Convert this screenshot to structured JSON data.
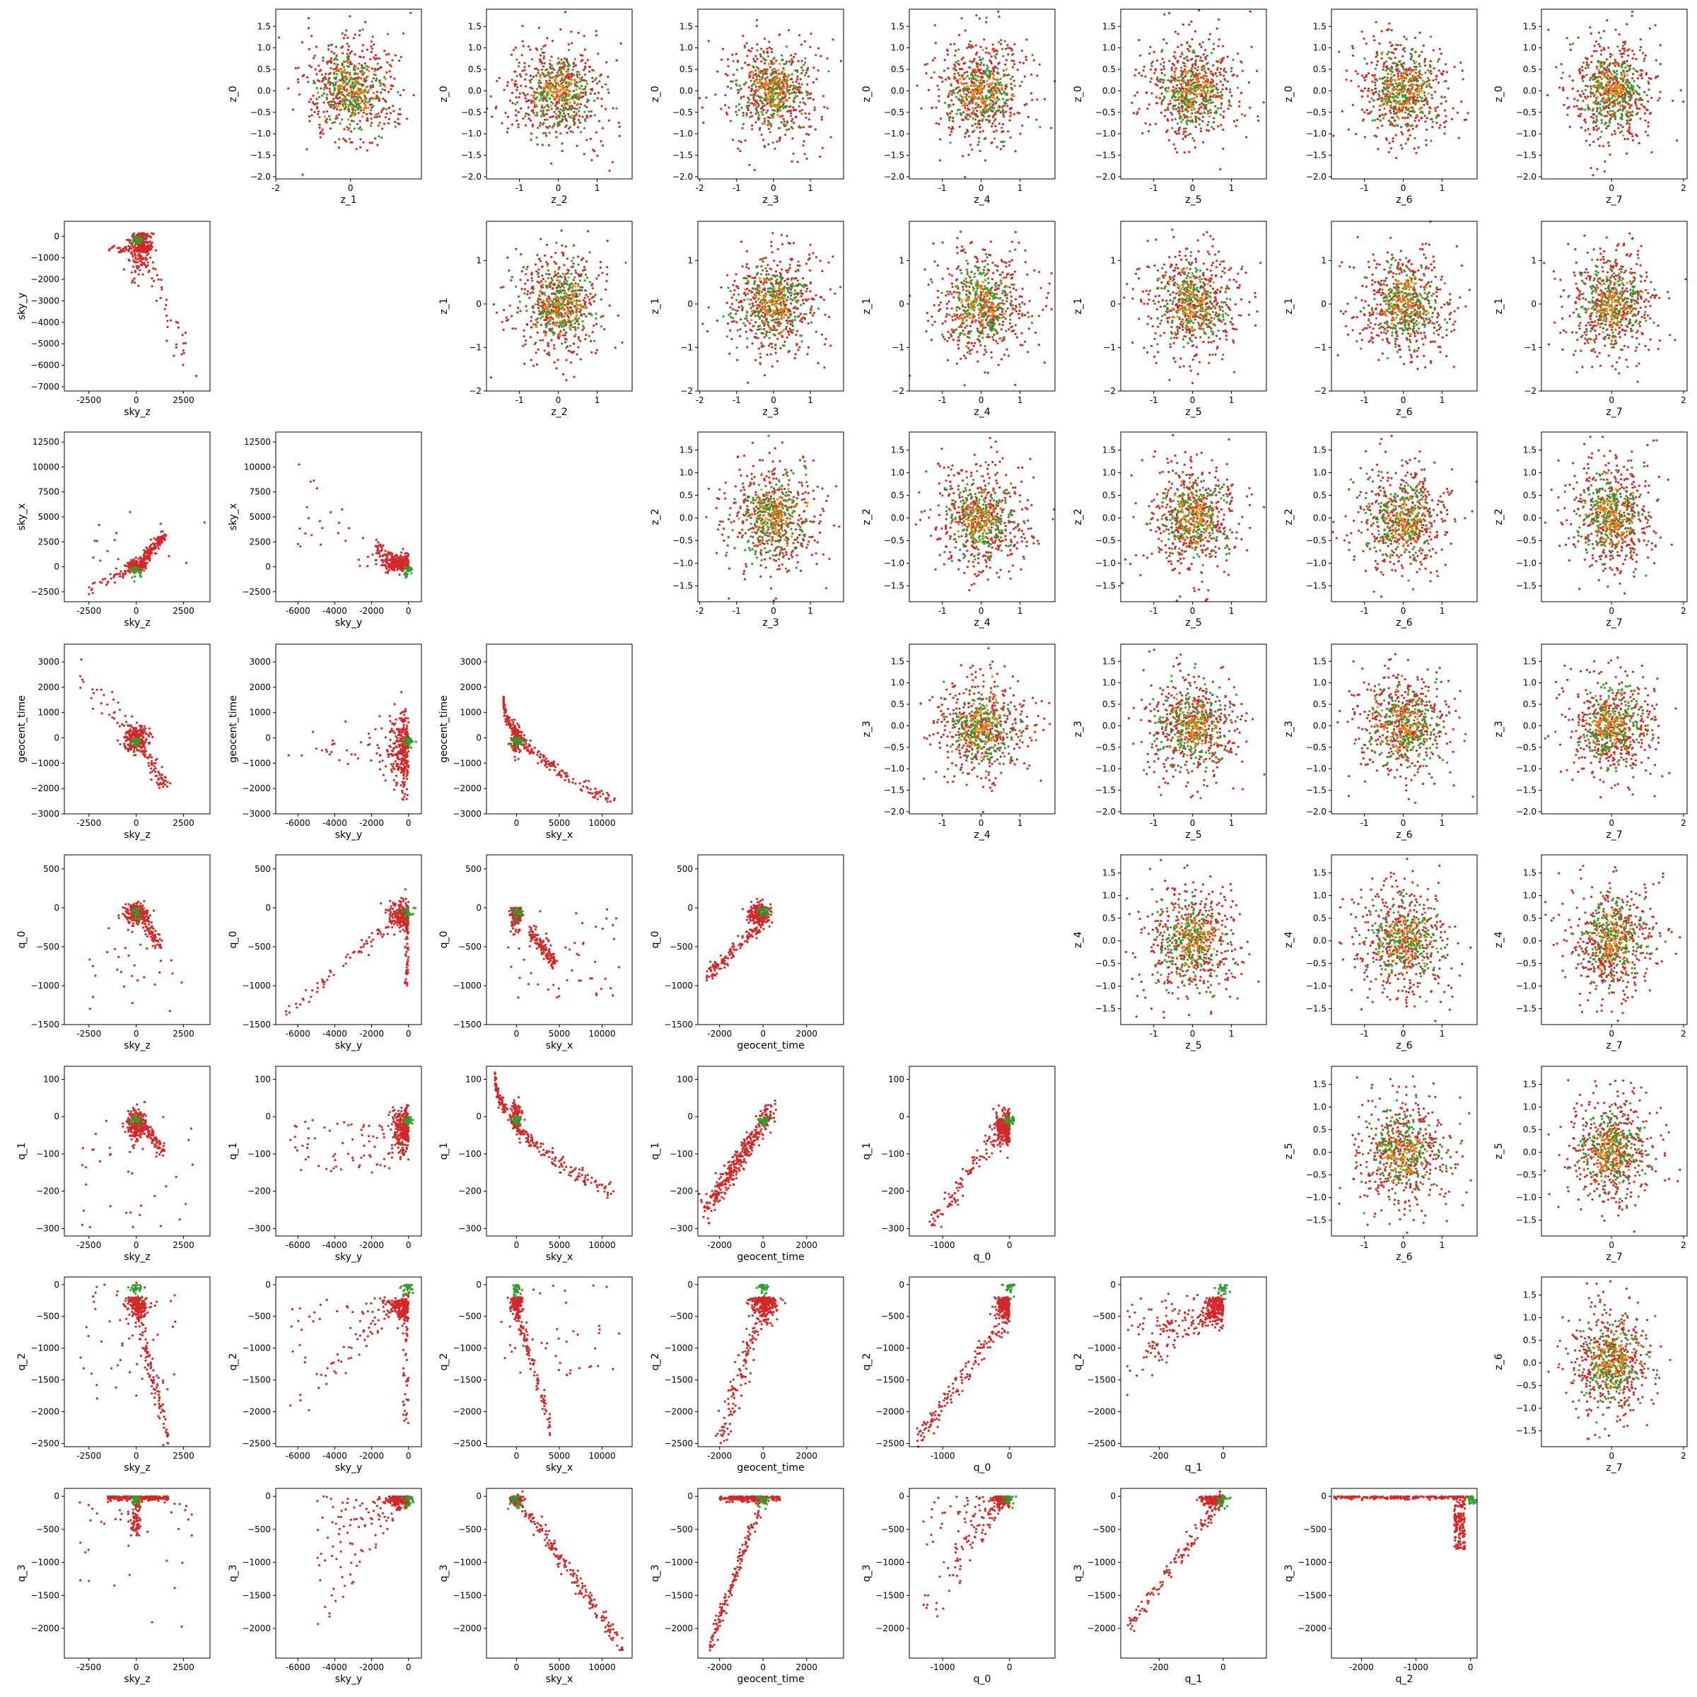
{
  "figure": {
    "type": "pair-plot",
    "colors": {
      "series_a": "#d62728",
      "series_b": "#2ca02c",
      "overlap": "#ff7f0e"
    }
  },
  "chart_data": {
    "type": "scatter",
    "layout": "lower-triangle: raw parameters; upper-triangle: latent z samples",
    "variables_lower": [
      "sky_z",
      "sky_y",
      "sky_x",
      "geocent_time",
      "q_0",
      "q_1",
      "q_2",
      "q_3"
    ],
    "variables_upper": [
      "z_0",
      "z_1",
      "z_2",
      "z_3",
      "z_4",
      "z_5",
      "z_6",
      "z_7"
    ],
    "ticks": {
      "sky_z": [
        -2500,
        0,
        2500
      ],
      "sky_y": [
        -6000,
        -4000,
        -2000,
        0
      ],
      "sky_x": [
        0,
        5000,
        10000
      ],
      "geocent_time": [
        -2000,
        0,
        2000
      ],
      "q_0": [
        -1000,
        0
      ],
      "q_1": [
        -200,
        0
      ],
      "q_2": [
        -2000,
        -1000,
        0
      ],
      "z_1": [
        -2,
        0
      ],
      "z_2": [
        -1,
        0,
        1
      ],
      "z_3": [
        -2,
        -1,
        0,
        1
      ],
      "z_4": [
        -1,
        0,
        1
      ],
      "z_5": [
        -1,
        0,
        1
      ],
      "z_6": [
        -1,
        0,
        1
      ],
      "z_7": [
        0,
        2
      ]
    },
    "y_ticks": {
      "sky_y": [
        -7000,
        -6000,
        -5000,
        -4000,
        -3000,
        -2000,
        -1000,
        0
      ],
      "sky_x": [
        -2500,
        0,
        2500,
        5000,
        7500,
        10000,
        12500
      ],
      "geocent_time": [
        -3000,
        -2000,
        -1000,
        0,
        1000,
        2000,
        3000
      ],
      "q_0": [
        -1500,
        -1000,
        -500,
        0,
        500
      ],
      "q_1": [
        -300,
        -200,
        -100,
        0,
        100
      ],
      "q_2": [
        -2500,
        -2000,
        -1500,
        -1000,
        -500,
        0
      ],
      "q_3": [
        -2000,
        -1500,
        -1000,
        -500,
        0
      ],
      "z_0": [
        -2.0,
        -1.5,
        -1.0,
        -0.5,
        0.0,
        0.5,
        1.0,
        1.5
      ],
      "z_1": [
        -2,
        -1,
        0,
        1
      ],
      "z_2": [
        -1.5,
        -1.0,
        -0.5,
        0.0,
        0.5,
        1.0,
        1.5
      ],
      "z_3": [
        -2.0,
        -1.5,
        -1.0,
        -0.5,
        0.0,
        0.5,
        1.0,
        1.5
      ],
      "z_4": [
        -1.5,
        -1.0,
        -0.5,
        0.0,
        0.5,
        1.0,
        1.5
      ],
      "z_5": [
        -1.5,
        -1.0,
        -0.5,
        0.0,
        0.5,
        1.0,
        1.5
      ],
      "z_6": [
        -1.5,
        -1.0,
        -0.5,
        0.0,
        0.5,
        1.0,
        1.5
      ]
    },
    "ranges": {
      "sky_z": [
        -3800,
        3900
      ],
      "sky_y": [
        -7200,
        700
      ],
      "sky_x": [
        -3500,
        13500
      ],
      "geocent_time": [
        -3000,
        3700
      ],
      "q_0": [
        -1500,
        680
      ],
      "q_1": [
        -320,
        135
      ],
      "q_2": [
        -2550,
        120
      ],
      "q_3": [
        -2450,
        120
      ],
      "z_0": [
        -2.05,
        1.9
      ],
      "z_1": [
        -2.0,
        1.9
      ],
      "z_2": [
        -1.85,
        1.9
      ],
      "z_3": [
        -2.05,
        1.9
      ],
      "z_4": [
        -1.85,
        1.9
      ],
      "z_5": [
        -1.85,
        1.9
      ],
      "z_6": [
        -1.85,
        1.9
      ],
      "z_7": [
        -1.95,
        2.1
      ]
    },
    "decimals": {
      "z_0": 1,
      "z_2": 1,
      "z_3": 1,
      "z_4": 1,
      "z_5": 1,
      "z_6": 1
    },
    "point_style": {
      "marker": "dot",
      "size": 1.6
    },
    "grid": false,
    "legend": "none"
  }
}
